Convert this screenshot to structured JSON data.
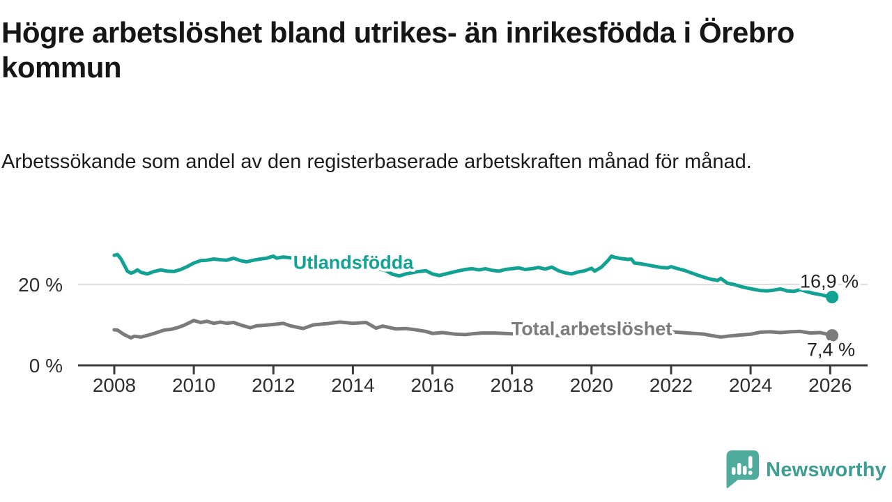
{
  "title": "Högre arbetslöshet bland utrikes- än inrikesfödda i Örebro kommun",
  "subtitle": "Arbetssökande som andel av den registerbaserade arbetskraften månad för månad.",
  "branding": {
    "name": "Newsworthy",
    "icon": "speech-bubble-bar-chart",
    "logo_color": "#4fac9c",
    "text_color": "#3e9d92"
  },
  "colors": {
    "series_foreign_born": "#12a294",
    "series_total": "#7b7b7b",
    "gridline": "#dedede",
    "axis": "#3b3b3b",
    "tick_text": "#2e2e2e"
  },
  "chart_data": {
    "type": "line",
    "title": "Högre arbetslöshet bland utrikes- än inrikesfödda i Örebro kommun",
    "subtitle": "Arbetssökande som andel av den registerbaserade arbetskraften månad för månad.",
    "xlabel": "",
    "ylabel": "",
    "xlim": [
      2007.1,
      2026.95
    ],
    "ylim": [
      0,
      32
    ],
    "x_ticks": [
      2008,
      2010,
      2012,
      2014,
      2016,
      2018,
      2020,
      2022,
      2024,
      2026
    ],
    "y_ticks": [
      {
        "value": 0,
        "label": "0 %"
      },
      {
        "value": 20,
        "label": "20 %"
      }
    ],
    "y_gridlines": [
      20
    ],
    "legend_position": "inline-labels",
    "grid": "horizontal-only",
    "series": [
      {
        "name": "Utlandsfödda",
        "color": "#12a294",
        "end_value": 16.9,
        "end_label": "16,9 %",
        "points": [
          [
            2008.0,
            27.2
          ],
          [
            2008.08,
            27.4
          ],
          [
            2008.17,
            26.3
          ],
          [
            2008.33,
            23.3
          ],
          [
            2008.42,
            22.8
          ],
          [
            2008.5,
            23.1
          ],
          [
            2008.58,
            23.6
          ],
          [
            2008.67,
            23.0
          ],
          [
            2008.83,
            22.6
          ],
          [
            2009.0,
            23.2
          ],
          [
            2009.17,
            23.6
          ],
          [
            2009.33,
            23.3
          ],
          [
            2009.5,
            23.2
          ],
          [
            2009.67,
            23.7
          ],
          [
            2009.83,
            24.4
          ],
          [
            2010.0,
            25.3
          ],
          [
            2010.17,
            25.9
          ],
          [
            2010.33,
            26.0
          ],
          [
            2010.5,
            26.3
          ],
          [
            2010.67,
            26.1
          ],
          [
            2010.83,
            26.0
          ],
          [
            2011.0,
            26.5
          ],
          [
            2011.17,
            25.9
          ],
          [
            2011.33,
            25.6
          ],
          [
            2011.5,
            26.0
          ],
          [
            2011.67,
            26.3
          ],
          [
            2011.83,
            26.5
          ],
          [
            2012.0,
            27.0
          ],
          [
            2012.08,
            26.5
          ],
          [
            2012.25,
            26.8
          ],
          [
            2012.5,
            26.5
          ],
          [
            2012.83,
            26.1
          ],
          [
            2013.17,
            26.3
          ],
          [
            2013.5,
            25.8
          ],
          [
            2013.83,
            25.3
          ],
          [
            2014.17,
            24.8
          ],
          [
            2014.5,
            24.2
          ],
          [
            2014.83,
            23.4
          ],
          [
            2015.0,
            22.5
          ],
          [
            2015.17,
            22.1
          ],
          [
            2015.33,
            22.6
          ],
          [
            2015.58,
            23.1
          ],
          [
            2015.83,
            23.4
          ],
          [
            2016.0,
            22.6
          ],
          [
            2016.17,
            22.2
          ],
          [
            2016.33,
            22.6
          ],
          [
            2016.5,
            23.0
          ],
          [
            2016.67,
            23.4
          ],
          [
            2016.83,
            23.7
          ],
          [
            2017.0,
            23.9
          ],
          [
            2017.17,
            23.6
          ],
          [
            2017.33,
            23.9
          ],
          [
            2017.5,
            23.5
          ],
          [
            2017.67,
            23.3
          ],
          [
            2017.83,
            23.7
          ],
          [
            2018.0,
            23.9
          ],
          [
            2018.17,
            24.1
          ],
          [
            2018.33,
            23.7
          ],
          [
            2018.5,
            23.9
          ],
          [
            2018.67,
            24.2
          ],
          [
            2018.83,
            23.8
          ],
          [
            2019.0,
            24.3
          ],
          [
            2019.17,
            23.4
          ],
          [
            2019.33,
            22.9
          ],
          [
            2019.5,
            22.6
          ],
          [
            2019.67,
            23.1
          ],
          [
            2019.83,
            23.4
          ],
          [
            2020.0,
            24.0
          ],
          [
            2020.08,
            23.3
          ],
          [
            2020.25,
            24.3
          ],
          [
            2020.42,
            26.0
          ],
          [
            2020.5,
            27.0
          ],
          [
            2020.58,
            26.7
          ],
          [
            2020.75,
            26.4
          ],
          [
            2020.92,
            26.2
          ],
          [
            2021.0,
            26.3
          ],
          [
            2021.08,
            25.3
          ],
          [
            2021.25,
            25.1
          ],
          [
            2021.42,
            24.8
          ],
          [
            2021.58,
            24.5
          ],
          [
            2021.75,
            24.2
          ],
          [
            2021.92,
            24.1
          ],
          [
            2022.0,
            24.4
          ],
          [
            2022.17,
            23.9
          ],
          [
            2022.33,
            23.5
          ],
          [
            2022.5,
            22.9
          ],
          [
            2022.67,
            22.3
          ],
          [
            2022.83,
            21.8
          ],
          [
            2023.0,
            21.3
          ],
          [
            2023.17,
            21.0
          ],
          [
            2023.25,
            21.5
          ],
          [
            2023.42,
            20.3
          ],
          [
            2023.58,
            20.0
          ],
          [
            2023.75,
            19.5
          ],
          [
            2023.92,
            19.1
          ],
          [
            2024.08,
            18.8
          ],
          [
            2024.25,
            18.5
          ],
          [
            2024.42,
            18.4
          ],
          [
            2024.58,
            18.6
          ],
          [
            2024.75,
            18.9
          ],
          [
            2024.92,
            18.4
          ],
          [
            2025.08,
            18.3
          ],
          [
            2025.25,
            18.7
          ],
          [
            2025.42,
            18.2
          ],
          [
            2025.58,
            17.8
          ],
          [
            2025.75,
            17.5
          ],
          [
            2025.92,
            17.1
          ],
          [
            2026.05,
            16.9
          ]
        ]
      },
      {
        "name": "Total arbetslöshet",
        "color": "#7b7b7b",
        "end_value": 7.4,
        "end_label": "7,4 %",
        "points": [
          [
            2008.0,
            8.8
          ],
          [
            2008.08,
            8.7
          ],
          [
            2008.25,
            7.6
          ],
          [
            2008.42,
            6.8
          ],
          [
            2008.5,
            7.2
          ],
          [
            2008.67,
            7.0
          ],
          [
            2008.83,
            7.4
          ],
          [
            2009.0,
            7.9
          ],
          [
            2009.25,
            8.7
          ],
          [
            2009.42,
            8.9
          ],
          [
            2009.58,
            9.3
          ],
          [
            2009.75,
            9.9
          ],
          [
            2009.92,
            10.7
          ],
          [
            2010.0,
            11.1
          ],
          [
            2010.17,
            10.6
          ],
          [
            2010.33,
            10.9
          ],
          [
            2010.5,
            10.4
          ],
          [
            2010.67,
            10.7
          ],
          [
            2010.83,
            10.4
          ],
          [
            2011.0,
            10.6
          ],
          [
            2011.17,
            10.0
          ],
          [
            2011.42,
            9.3
          ],
          [
            2011.58,
            9.8
          ],
          [
            2011.75,
            9.9
          ],
          [
            2012.0,
            10.1
          ],
          [
            2012.25,
            10.4
          ],
          [
            2012.42,
            9.8
          ],
          [
            2012.75,
            9.1
          ],
          [
            2013.0,
            10.0
          ],
          [
            2013.33,
            10.3
          ],
          [
            2013.67,
            10.7
          ],
          [
            2014.0,
            10.4
          ],
          [
            2014.33,
            10.6
          ],
          [
            2014.58,
            9.2
          ],
          [
            2014.75,
            9.7
          ],
          [
            2015.08,
            9.0
          ],
          [
            2015.33,
            9.1
          ],
          [
            2015.58,
            8.8
          ],
          [
            2015.83,
            8.4
          ],
          [
            2016.0,
            7.9
          ],
          [
            2016.25,
            8.1
          ],
          [
            2016.58,
            7.7
          ],
          [
            2016.83,
            7.6
          ],
          [
            2017.0,
            7.8
          ],
          [
            2017.25,
            8.0
          ],
          [
            2017.58,
            8.0
          ],
          [
            2018.0,
            7.8
          ],
          [
            2018.5,
            7.6
          ],
          [
            2019.0,
            7.4
          ],
          [
            2019.5,
            7.3
          ],
          [
            2020.0,
            7.9
          ],
          [
            2020.42,
            9.5
          ],
          [
            2020.75,
            9.4
          ],
          [
            2021.0,
            9.2
          ],
          [
            2021.5,
            8.7
          ],
          [
            2022.0,
            8.3
          ],
          [
            2022.42,
            8.0
          ],
          [
            2022.58,
            7.9
          ],
          [
            2022.83,
            7.7
          ],
          [
            2023.0,
            7.4
          ],
          [
            2023.25,
            7.0
          ],
          [
            2023.5,
            7.3
          ],
          [
            2023.75,
            7.5
          ],
          [
            2024.0,
            7.7
          ],
          [
            2024.25,
            8.2
          ],
          [
            2024.5,
            8.3
          ],
          [
            2024.75,
            8.1
          ],
          [
            2025.0,
            8.3
          ],
          [
            2025.25,
            8.4
          ],
          [
            2025.5,
            8.0
          ],
          [
            2025.75,
            8.1
          ],
          [
            2026.05,
            7.4
          ]
        ]
      }
    ]
  }
}
